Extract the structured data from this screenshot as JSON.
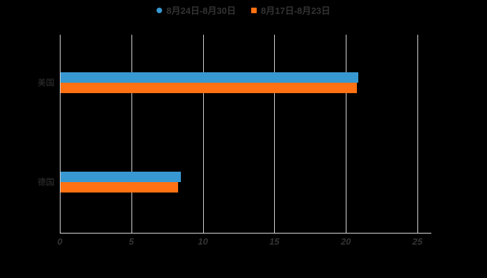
{
  "background_color": "#000000",
  "text_color": "#333333",
  "grid_color": "#d8d8d8",
  "axis_color": "#dedede",
  "legend": {
    "items": [
      {
        "label": "8月24日-8月30日",
        "color": "#3898d2",
        "marker": "circle"
      },
      {
        "label": "8月17日-8月23日",
        "color": "#ff7112",
        "marker": "square"
      }
    ]
  },
  "chart_data": {
    "type": "bar",
    "orientation": "horizontal",
    "title": "",
    "xlabel": "",
    "ylabel": "",
    "categories": [
      "美国",
      "德国"
    ],
    "series": [
      {
        "name": "8月24日-8月30日",
        "color": "#3898d2",
        "values": [
          20.8,
          8.4
        ]
      },
      {
        "name": "8月17日-8月23日",
        "color": "#ff7112",
        "values": [
          20.7,
          8.2
        ]
      }
    ],
    "xlim": [
      0,
      25
    ],
    "xticks": [
      0,
      5,
      10,
      15,
      20,
      25
    ],
    "grid": true,
    "legend_position": "top"
  }
}
